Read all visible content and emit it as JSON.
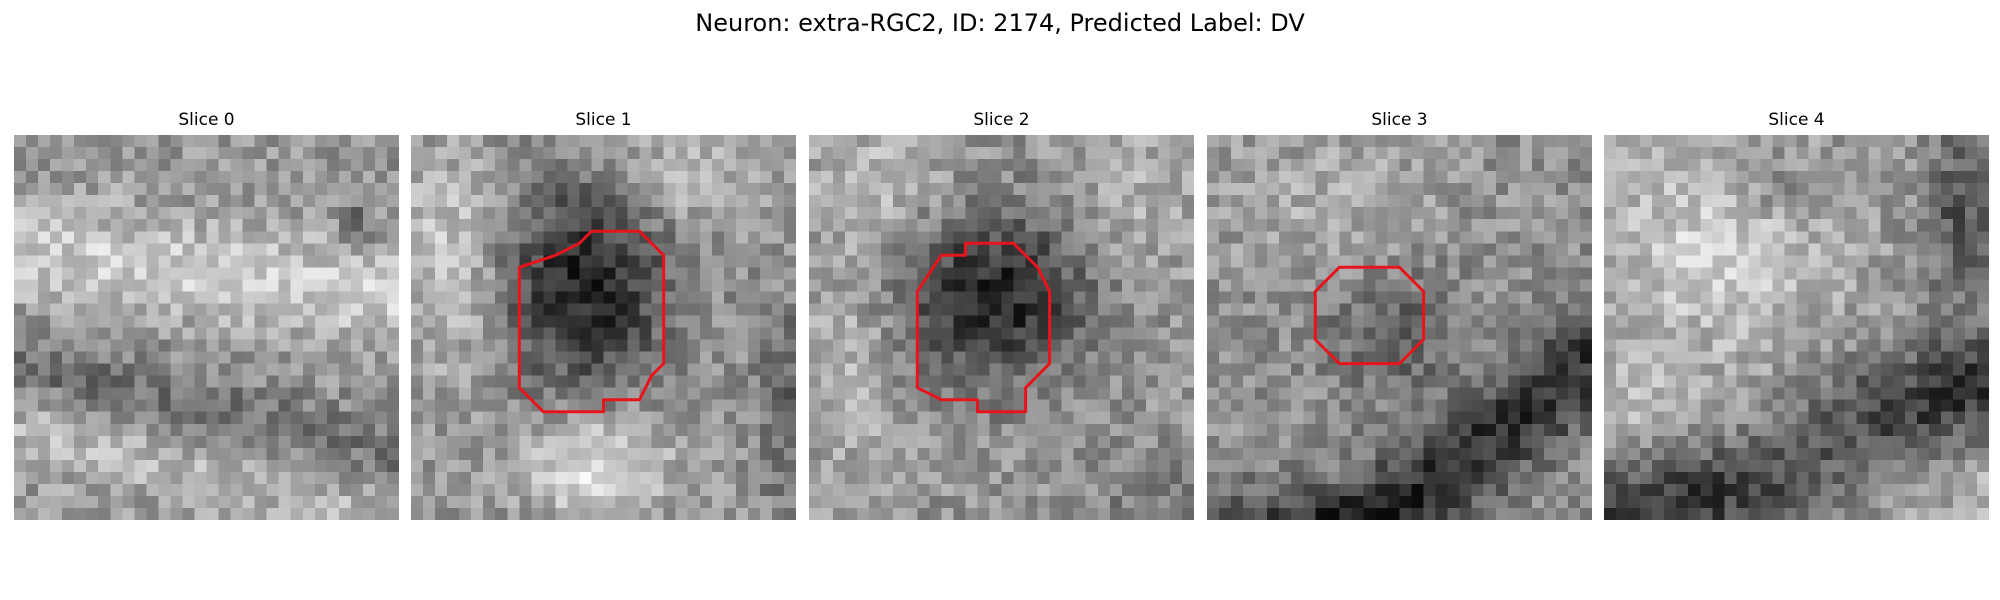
{
  "figure": {
    "title": "Neuron: extra-RGC2, ID: 2174, Predicted Label: DV",
    "outline_color": "#e8141c",
    "colormap": "grayscale"
  },
  "panels": [
    {
      "label": "Slice 0",
      "has_outline": false
    },
    {
      "label": "Slice 1",
      "has_outline": true
    },
    {
      "label": "Slice 2",
      "has_outline": true
    },
    {
      "label": "Slice 3",
      "has_outline": true
    },
    {
      "label": "Slice 4",
      "has_outline": false
    }
  ]
}
